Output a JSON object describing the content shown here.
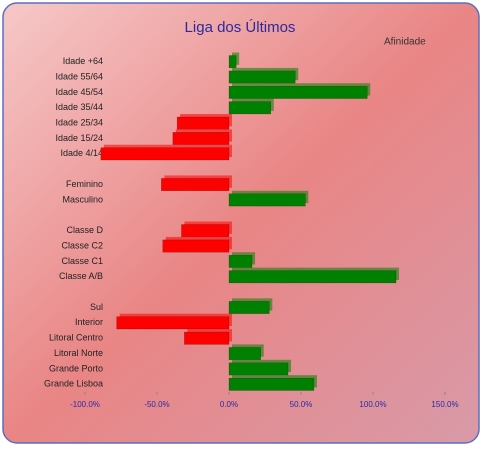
{
  "chart_data": {
    "type": "bar",
    "orientation": "horizontal",
    "title": "Liga dos Últimos",
    "categories": [
      "Idade +64",
      "Idade 55/64",
      "Idade 45/54",
      "Idade 35/44",
      "Idade 25/34",
      "Idade 15/24",
      "Idade 4/14",
      null,
      "Feminino",
      "Masculino",
      null,
      "Classe D",
      "Classe C2",
      "Classe C1",
      "Classe A/B",
      null,
      "Sul",
      "Interior",
      "Litoral Centro",
      "Litoral Norte",
      "Grande Porto",
      "Grande Lisboa"
    ],
    "series": [
      {
        "name": "Afinidade",
        "positive_color": "#008000",
        "negative_color": "#ff0000",
        "values": [
          5,
          46,
          96,
          29,
          -36,
          -39,
          -89,
          null,
          -47,
          53,
          null,
          -33,
          -46,
          16,
          116,
          null,
          28,
          -78,
          -31,
          22,
          41,
          59
        ]
      }
    ],
    "xlim": [
      -100,
      150
    ],
    "xticks": [
      {
        "value": -100,
        "label": "-100.0%"
      },
      {
        "value": -50,
        "label": "-50.0%"
      },
      {
        "value": 0,
        "label": "0.0%"
      },
      {
        "value": 50,
        "label": "50.0%"
      },
      {
        "value": 100,
        "label": "100.0%"
      },
      {
        "value": 150,
        "label": "150.0%"
      }
    ]
  }
}
